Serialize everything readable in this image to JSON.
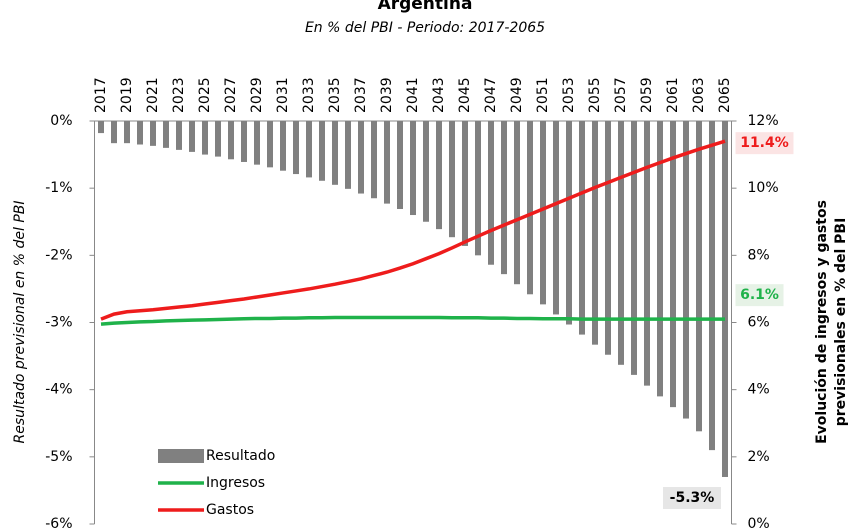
{
  "chart_data": {
    "type": "bar_line",
    "title": "Argentina",
    "subtitle": "En % del PBI - Periodo: 2017-2065",
    "ylabel": "Resultado previsional en % del PBI",
    "y2label": [
      "Evolución de ingresos y gastos",
      "previsionales en % del PBI"
    ],
    "categories": [
      "2017",
      null,
      "2019",
      null,
      "2021",
      null,
      "2023",
      null,
      "2025",
      null,
      "2027",
      null,
      "2029",
      null,
      "2031",
      null,
      "2033",
      null,
      "2035",
      null,
      "2037",
      null,
      "2039",
      null,
      "2041",
      null,
      "2043",
      null,
      "2045",
      null,
      "2047",
      null,
      "2049",
      null,
      "2051",
      null,
      "2053",
      null,
      "2055",
      null,
      "2057",
      null,
      "2059",
      null,
      "2061",
      null,
      "2063",
      null,
      "2065"
    ],
    "ylim": [
      -6,
      0
    ],
    "yticks": [
      {
        "value": 0,
        "label": "0%"
      },
      {
        "value": -1,
        "label": "-1%"
      },
      {
        "value": -2,
        "label": "-2%"
      },
      {
        "value": -3,
        "label": "-3%"
      },
      {
        "value": -4,
        "label": "-4%"
      },
      {
        "value": -5,
        "label": "-5%"
      },
      {
        "value": -6,
        "label": "-6%"
      }
    ],
    "y2lim": [
      0,
      12
    ],
    "y2ticks": [
      {
        "value": 0,
        "label": "0%"
      },
      {
        "value": 2,
        "label": "2%"
      },
      {
        "value": 4,
        "label": "4%"
      },
      {
        "value": 6,
        "label": "6%"
      },
      {
        "value": 8,
        "label": "8%"
      },
      {
        "value": 10,
        "label": "10%"
      },
      {
        "value": 12,
        "label": "12%"
      }
    ],
    "legend": "lower left",
    "series": [
      {
        "name": "Resultado",
        "kind": "bar",
        "color": "#808080",
        "values": [
          -0.18,
          -0.33,
          -0.33,
          -0.35,
          -0.37,
          -0.4,
          -0.43,
          -0.46,
          -0.5,
          -0.53,
          -0.57,
          -0.61,
          -0.65,
          -0.69,
          -0.74,
          -0.79,
          -0.84,
          -0.89,
          -0.95,
          -1.01,
          -1.08,
          -1.15,
          -1.23,
          -1.31,
          -1.4,
          -1.5,
          -1.61,
          -1.73,
          -1.86,
          -2.0,
          -2.14,
          -2.28,
          -2.43,
          -2.58,
          -2.73,
          -2.88,
          -3.03,
          -3.18,
          -3.33,
          -3.48,
          -3.63,
          -3.78,
          -3.94,
          -4.1,
          -4.26,
          -4.43,
          -4.62,
          -4.9,
          -5.3
        ],
        "value_labels": [
          null,
          null,
          null,
          null,
          null,
          null,
          null,
          null,
          null,
          null,
          null,
          null,
          null,
          null,
          null,
          null,
          null,
          null,
          null,
          null,
          null,
          null,
          null,
          null,
          null,
          null,
          null,
          null,
          null,
          null,
          null,
          null,
          null,
          null,
          null,
          null,
          null,
          null,
          null,
          null,
          null,
          null,
          null,
          null,
          null,
          null,
          null,
          null,
          "-5.3%"
        ]
      },
      {
        "name": "Ingresos",
        "kind": "line",
        "axis": "y2",
        "color": "#1fb24a",
        "values": [
          5.95,
          5.98,
          6.0,
          6.02,
          6.03,
          6.05,
          6.06,
          6.07,
          6.08,
          6.09,
          6.1,
          6.11,
          6.12,
          6.12,
          6.13,
          6.13,
          6.14,
          6.14,
          6.15,
          6.15,
          6.15,
          6.15,
          6.15,
          6.15,
          6.15,
          6.15,
          6.15,
          6.14,
          6.14,
          6.14,
          6.13,
          6.13,
          6.12,
          6.12,
          6.11,
          6.11,
          6.11,
          6.1,
          6.1,
          6.1,
          6.1,
          6.1,
          6.1,
          6.1,
          6.1,
          6.1,
          6.1,
          6.1,
          6.1
        ],
        "value_labels": [
          null,
          null,
          null,
          null,
          null,
          null,
          null,
          null,
          null,
          null,
          null,
          null,
          null,
          null,
          null,
          null,
          null,
          null,
          null,
          null,
          null,
          null,
          null,
          null,
          null,
          null,
          null,
          null,
          null,
          null,
          null,
          null,
          null,
          null,
          null,
          null,
          null,
          null,
          null,
          null,
          null,
          null,
          null,
          null,
          null,
          null,
          null,
          null,
          "6.1%"
        ]
      },
      {
        "name": "Gastos",
        "kind": "line",
        "axis": "y2",
        "color": "#ee1c1c",
        "values": [
          6.1,
          6.25,
          6.32,
          6.35,
          6.38,
          6.42,
          6.46,
          6.5,
          6.55,
          6.6,
          6.65,
          6.7,
          6.76,
          6.82,
          6.88,
          6.94,
          7.0,
          7.07,
          7.14,
          7.22,
          7.3,
          7.4,
          7.5,
          7.62,
          7.75,
          7.9,
          8.05,
          8.22,
          8.4,
          8.57,
          8.74,
          8.9,
          9.06,
          9.22,
          9.38,
          9.54,
          9.7,
          9.86,
          10.02,
          10.17,
          10.32,
          10.47,
          10.62,
          10.76,
          10.9,
          11.03,
          11.16,
          11.28,
          11.4
        ],
        "value_labels": [
          null,
          null,
          null,
          null,
          null,
          null,
          null,
          null,
          null,
          null,
          null,
          null,
          null,
          null,
          null,
          null,
          null,
          null,
          null,
          null,
          null,
          null,
          null,
          null,
          null,
          null,
          null,
          null,
          null,
          null,
          null,
          null,
          null,
          null,
          null,
          null,
          null,
          null,
          null,
          null,
          null,
          null,
          null,
          null,
          null,
          null,
          null,
          null,
          "11.4%"
        ]
      }
    ]
  }
}
